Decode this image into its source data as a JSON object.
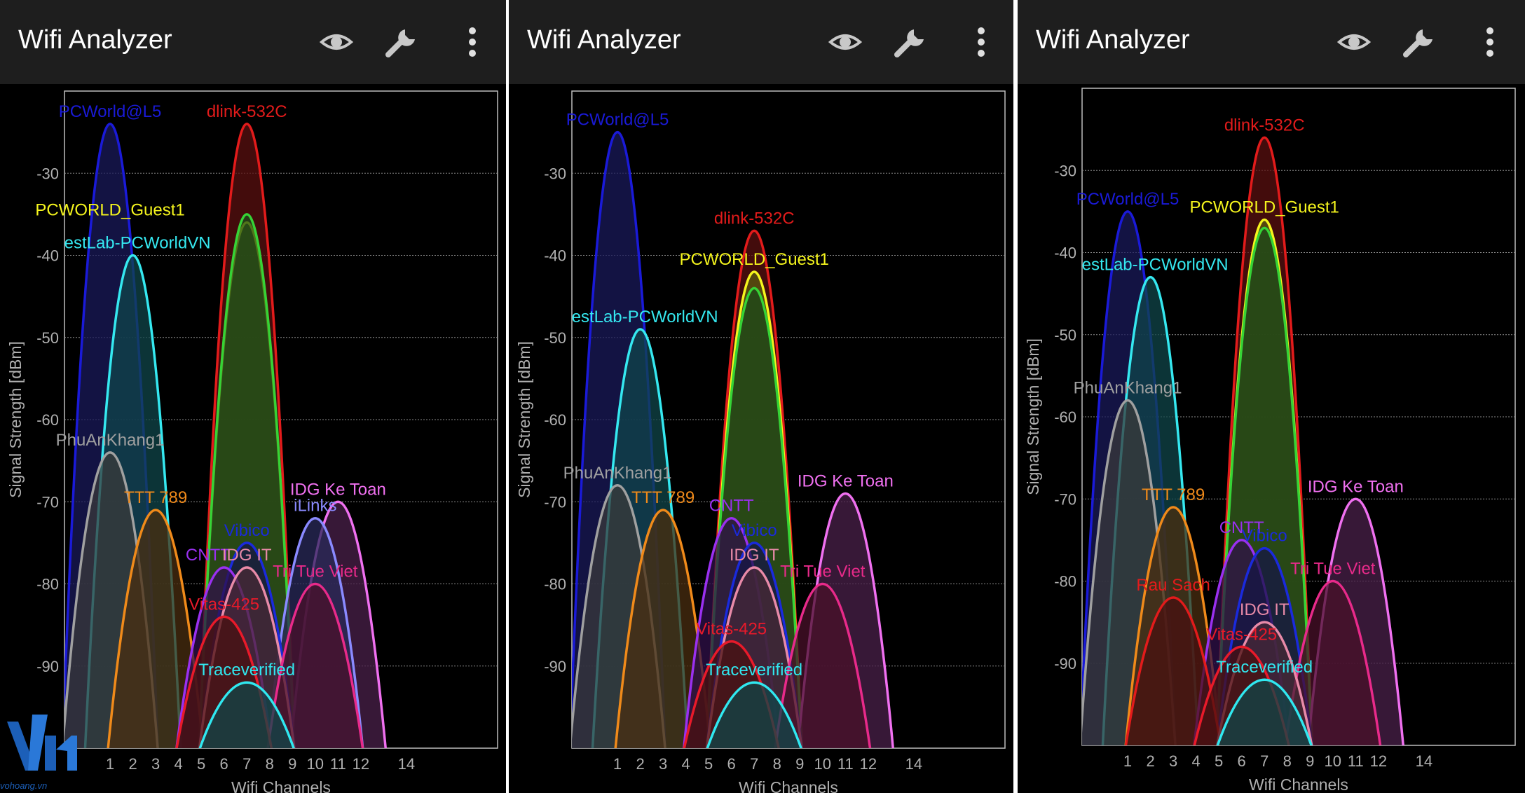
{
  "colors": {
    "background": "#000000",
    "appbar": "#1e1e1e",
    "grid": "#8a8a8a",
    "axis_text": "#b0b0b0"
  },
  "panels": [
    {
      "app_title": "Wifi Analyzer",
      "toolbar": {
        "view_icon": "eye-icon",
        "settings_icon": "wrench-icon",
        "menu_icon": "more-vert-icon"
      },
      "chart_data": {
        "type": "area",
        "xlabel": "Wifi Channels",
        "ylabel": "Signal Strength [dBm]",
        "xlim": [
          -1,
          18
        ],
        "ylim": [
          -100,
          -20
        ],
        "x_ticks": [
          "1",
          "2",
          "3",
          "4",
          "5",
          "6",
          "7",
          "8",
          "9",
          "10",
          "11",
          "12",
          "14"
        ],
        "y_ticks": [
          "-30",
          "-40",
          "-50",
          "-60",
          "-70",
          "-80",
          "-90"
        ],
        "grid": true,
        "series": [
          {
            "name": "PCWorld@L5",
            "channel": 1,
            "peak": -24,
            "color": "#1a1ad8",
            "fill": "#1a1a5a",
            "label_offset": 0
          },
          {
            "name": "dlink-532C",
            "channel": 7,
            "peak": -24,
            "color": "#e21b1b",
            "fill": "#5a1010",
            "label_offset": 0
          },
          {
            "name": "PCWORLD_Guest1",
            "channel": 7,
            "peak": -36,
            "color": "#f5f51d",
            "fill": "#5a5a10",
            "label_offset": -6
          },
          {
            "name": "",
            "channel": 7,
            "peak": -35,
            "color": "#36d336",
            "fill": "#1a4a1a",
            "label_offset": 0
          },
          {
            "name": "estLab-PCWorldVN",
            "channel": 2,
            "peak": -40,
            "color": "#35e8f0",
            "fill": "#10454a",
            "label_offset": 0.2
          },
          {
            "name": "PhuAnKhang1",
            "channel": 1,
            "peak": -64,
            "color": "#a0a0a0",
            "fill": "#3a3a3a",
            "label_offset": 0
          },
          {
            "name": "TTT 789",
            "channel": 3,
            "peak": -71,
            "color": "#f08a1a",
            "fill": "#4a2e10",
            "label_offset": 0
          },
          {
            "name": "IDG Ke Toan",
            "channel": 11,
            "peak": -70,
            "color": "#f070f0",
            "fill": "#4a204a",
            "label_offset": 0
          },
          {
            "name": "iLinks",
            "channel": 10,
            "peak": -72,
            "color": "#8a8aff",
            "fill": "#2a2a5a",
            "label_offset": 0
          },
          {
            "name": "Vibico",
            "channel": 7,
            "peak": -75,
            "color": "#1a2adc",
            "fill": "#151545",
            "label_offset": 0
          },
          {
            "name": "CNTT",
            "channel": 6,
            "peak": -78,
            "color": "#9a30f0",
            "fill": "#30104a",
            "label_offset": -0.7
          },
          {
            "name": "IDG IT",
            "channel": 7,
            "peak": -78,
            "color": "#e88aa8",
            "fill": "#4a2a35",
            "label_offset": 0
          },
          {
            "name": "Tri Tue Viet",
            "channel": 10,
            "peak": -80,
            "color": "#e82a8a",
            "fill": "#4a102a",
            "label_offset": 0
          },
          {
            "name": "Vitas-425",
            "channel": 6,
            "peak": -84,
            "color": "#e81a2a",
            "fill": "#4a1010",
            "label_offset": 0
          },
          {
            "name": "Traceverified",
            "channel": 7,
            "peak": -92,
            "color": "#30e8f0",
            "fill": "#104548",
            "label_offset": 0
          }
        ]
      }
    },
    {
      "app_title": "Wifi Analyzer",
      "toolbar": {
        "view_icon": "eye-icon",
        "settings_icon": "wrench-icon",
        "menu_icon": "more-vert-icon"
      },
      "chart_data": {
        "type": "area",
        "xlabel": "Wifi Channels",
        "ylabel": "Signal Strength [dBm]",
        "xlim": [
          -1,
          18
        ],
        "ylim": [
          -100,
          -20
        ],
        "x_ticks": [
          "1",
          "2",
          "3",
          "4",
          "5",
          "6",
          "7",
          "8",
          "9",
          "10",
          "11",
          "12",
          "14"
        ],
        "y_ticks": [
          "-30",
          "-40",
          "-50",
          "-60",
          "-70",
          "-80",
          "-90"
        ],
        "grid": true,
        "series": [
          {
            "name": "PCWorld@L5",
            "channel": 1,
            "peak": -25,
            "color": "#1a1ad8",
            "fill": "#1a1a5a",
            "label_offset": 0
          },
          {
            "name": "dlink-532C",
            "channel": 7,
            "peak": -37,
            "color": "#e21b1b",
            "fill": "#5a1010",
            "label_offset": 0
          },
          {
            "name": "PCWORLD_Guest1",
            "channel": 7,
            "peak": -42,
            "color": "#f5f51d",
            "fill": "#5a5a10",
            "label_offset": 0
          },
          {
            "name": "",
            "channel": 7,
            "peak": -44,
            "color": "#36d336",
            "fill": "#1a4a1a",
            "label_offset": 0
          },
          {
            "name": "estLab-PCWorldVN",
            "channel": 2,
            "peak": -49,
            "color": "#35e8f0",
            "fill": "#10454a",
            "label_offset": 0.2
          },
          {
            "name": "PhuAnKhang1",
            "channel": 1,
            "peak": -68,
            "color": "#a0a0a0",
            "fill": "#3a3a3a",
            "label_offset": 0
          },
          {
            "name": "TTT 789",
            "channel": 3,
            "peak": -71,
            "color": "#f08a1a",
            "fill": "#4a2e10",
            "label_offset": 0
          },
          {
            "name": "CNTT",
            "channel": 6,
            "peak": -72,
            "color": "#9a30f0",
            "fill": "#30104a",
            "label_offset": 0
          },
          {
            "name": "IDG Ke Toan",
            "channel": 11,
            "peak": -69,
            "color": "#f070f0",
            "fill": "#4a204a",
            "label_offset": 0
          },
          {
            "name": "Vibico",
            "channel": 7,
            "peak": -75,
            "color": "#1a2adc",
            "fill": "#151545",
            "label_offset": 0
          },
          {
            "name": "IDG IT",
            "channel": 7,
            "peak": -78,
            "color": "#e88aa8",
            "fill": "#4a2a35",
            "label_offset": 0
          },
          {
            "name": "Tri Tue Viet",
            "channel": 10,
            "peak": -80,
            "color": "#e82a8a",
            "fill": "#4a102a",
            "label_offset": 0
          },
          {
            "name": "Vitas-425",
            "channel": 6,
            "peak": -87,
            "color": "#e81a2a",
            "fill": "#4a1010",
            "label_offset": 0
          },
          {
            "name": "Traceverified",
            "channel": 7,
            "peak": -92,
            "color": "#30e8f0",
            "fill": "#104548",
            "label_offset": 0
          }
        ]
      }
    },
    {
      "app_title": "Wifi Analyzer",
      "toolbar": {
        "view_icon": "eye-icon",
        "settings_icon": "wrench-icon",
        "menu_icon": "more-vert-icon"
      },
      "chart_data": {
        "type": "area",
        "xlabel": "Wifi Channels",
        "ylabel": "Signal Strength [dBm]",
        "xlim": [
          -1,
          18
        ],
        "ylim": [
          -100,
          -20
        ],
        "x_ticks": [
          "1",
          "2",
          "3",
          "4",
          "5",
          "6",
          "7",
          "8",
          "9",
          "10",
          "11",
          "12",
          "14"
        ],
        "y_ticks": [
          "-30",
          "-40",
          "-50",
          "-60",
          "-70",
          "-80",
          "-90"
        ],
        "grid": true,
        "series": [
          {
            "name": "dlink-532C",
            "channel": 7,
            "peak": -26,
            "color": "#e21b1b",
            "fill": "#5a1010",
            "label_offset": 0
          },
          {
            "name": "PCWorld@L5",
            "channel": 1,
            "peak": -35,
            "color": "#1a1ad8",
            "fill": "#1a1a5a",
            "label_offset": 0
          },
          {
            "name": "PCWORLD_Guest1",
            "channel": 7,
            "peak": -36,
            "color": "#f5f51d",
            "fill": "#5a5a10",
            "label_offset": 0
          },
          {
            "name": "",
            "channel": 7,
            "peak": -37,
            "color": "#36d336",
            "fill": "#1a4a1a",
            "label_offset": 0
          },
          {
            "name": "estLab-PCWorldVN",
            "channel": 2,
            "peak": -43,
            "color": "#35e8f0",
            "fill": "#10454a",
            "label_offset": 0.2
          },
          {
            "name": "PhuAnKhang1",
            "channel": 1,
            "peak": -58,
            "color": "#a0a0a0",
            "fill": "#3a3a3a",
            "label_offset": 0
          },
          {
            "name": "TTT 789",
            "channel": 3,
            "peak": -71,
            "color": "#f08a1a",
            "fill": "#4a2e10",
            "label_offset": 0
          },
          {
            "name": "IDG Ke Toan",
            "channel": 11,
            "peak": -70,
            "color": "#f070f0",
            "fill": "#4a204a",
            "label_offset": 0
          },
          {
            "name": "CNTT",
            "channel": 6,
            "peak": -75,
            "color": "#9a30f0",
            "fill": "#30104a",
            "label_offset": 0
          },
          {
            "name": "Vibico",
            "channel": 7,
            "peak": -76,
            "color": "#1a2adc",
            "fill": "#151545",
            "label_offset": 0
          },
          {
            "name": "Tri Tue Viet",
            "channel": 10,
            "peak": -80,
            "color": "#e82a8a",
            "fill": "#4a102a",
            "label_offset": 0
          },
          {
            "name": "Rau Sach",
            "channel": 3,
            "peak": -82,
            "color": "#e21b1b",
            "fill": "#4a1010",
            "label_offset": 0
          },
          {
            "name": "IDG IT",
            "channel": 7,
            "peak": -85,
            "color": "#e88aa8",
            "fill": "#4a2a35",
            "label_offset": 0
          },
          {
            "name": "Vitas-425",
            "channel": 6,
            "peak": -88,
            "color": "#e81a2a",
            "fill": "#4a1010",
            "label_offset": 0
          },
          {
            "name": "Traceverified",
            "channel": 7,
            "peak": -92,
            "color": "#30e8f0",
            "fill": "#104548",
            "label_offset": 0
          }
        ]
      }
    }
  ],
  "watermark": {
    "logo": "vh-logo",
    "text": "vohoang.vn"
  }
}
